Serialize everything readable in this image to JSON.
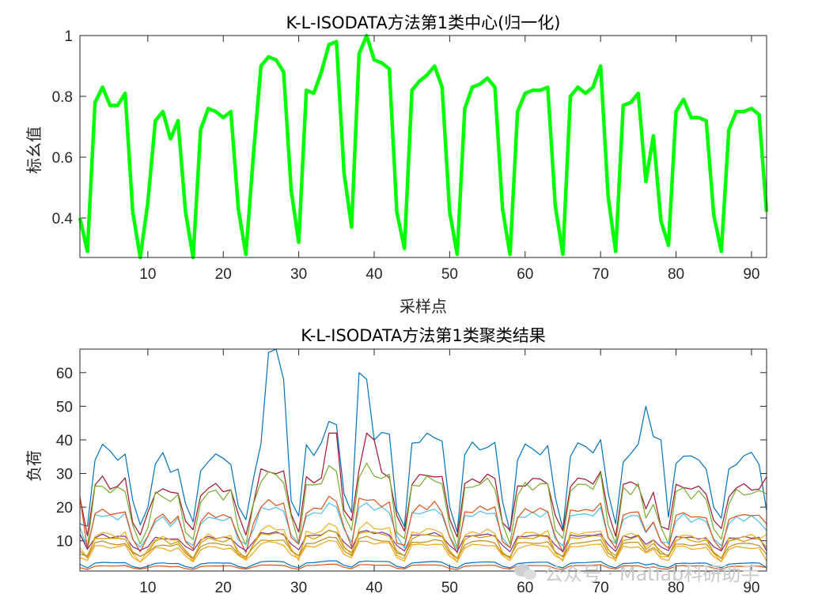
{
  "chart_data": [
    {
      "type": "line",
      "title": "K-L-ISODATA方法第1类中心(归一化)",
      "xlabel": "采样点",
      "ylabel": "标幺值",
      "xlim": [
        1,
        92
      ],
      "ylim": [
        0.27,
        1.0
      ],
      "xticks": [
        10,
        20,
        30,
        40,
        50,
        60,
        70,
        80,
        90
      ],
      "yticks": [
        0.4,
        0.6,
        0.8,
        1
      ],
      "ytick_labels": [
        "0.4",
        "0.6",
        "0.8",
        "1"
      ],
      "grid": false,
      "legend": "none",
      "series": [
        {
          "color": "#00ff00",
          "x": [
            1,
            2,
            3,
            4,
            5,
            6,
            7,
            8,
            9,
            10,
            11,
            12,
            13,
            14,
            15,
            16,
            17,
            18,
            19,
            20,
            21,
            22,
            23,
            24,
            25,
            26,
            27,
            28,
            29,
            30,
            31,
            32,
            33,
            34,
            35,
            36,
            37,
            38,
            39,
            40,
            41,
            42,
            43,
            44,
            45,
            46,
            47,
            48,
            49,
            50,
            51,
            52,
            53,
            54,
            55,
            56,
            57,
            58,
            59,
            60,
            61,
            62,
            63,
            64,
            65,
            66,
            67,
            68,
            69,
            70,
            71,
            72,
            73,
            74,
            75,
            76,
            77,
            78,
            79,
            80,
            81,
            82,
            83,
            84,
            85,
            86,
            87,
            88,
            89,
            90,
            91,
            92
          ],
          "values": [
            0.4,
            0.29,
            0.78,
            0.83,
            0.77,
            0.77,
            0.81,
            0.42,
            0.27,
            0.45,
            0.72,
            0.75,
            0.66,
            0.72,
            0.42,
            0.27,
            0.69,
            0.76,
            0.75,
            0.73,
            0.75,
            0.43,
            0.28,
            0.61,
            0.9,
            0.93,
            0.92,
            0.88,
            0.49,
            0.32,
            0.82,
            0.81,
            0.88,
            0.97,
            0.98,
            0.55,
            0.37,
            0.94,
            1.0,
            0.92,
            0.91,
            0.89,
            0.42,
            0.3,
            0.82,
            0.85,
            0.87,
            0.9,
            0.83,
            0.42,
            0.28,
            0.76,
            0.83,
            0.84,
            0.86,
            0.83,
            0.43,
            0.28,
            0.75,
            0.81,
            0.82,
            0.82,
            0.83,
            0.44,
            0.28,
            0.8,
            0.83,
            0.81,
            0.83,
            0.9,
            0.47,
            0.29,
            0.77,
            0.78,
            0.81,
            0.52,
            0.67,
            0.39,
            0.31,
            0.75,
            0.79,
            0.73,
            0.73,
            0.72,
            0.41,
            0.29,
            0.69,
            0.75,
            0.75,
            0.76,
            0.74,
            0.42
          ]
        }
      ]
    },
    {
      "type": "line",
      "title": "K-L-ISODATA方法第1类聚类结果",
      "xlabel": "",
      "ylabel": "负荷",
      "xlim": [
        1,
        92
      ],
      "ylim": [
        1,
        67
      ],
      "xticks": [
        10,
        20,
        30,
        40,
        50,
        60,
        70,
        80,
        90
      ],
      "yticks": [
        10,
        20,
        30,
        40,
        50,
        60
      ],
      "grid": false,
      "legend": "none",
      "series": [
        {
          "color": "#0072bd",
          "shape": "a",
          "day_peak": 45,
          "night": 14,
          "rise": 3,
          "start": 15,
          "end": 19,
          "spikes": [
            [
              26,
              66
            ],
            [
              27,
              67
            ],
            [
              28,
              58
            ],
            [
              38,
              60
            ],
            [
              39,
              58
            ],
            [
              47,
              42
            ],
            [
              76,
              50
            ],
            [
              77,
              41
            ],
            [
              78,
              40
            ]
          ]
        },
        {
          "color": "#a2142f",
          "shape": "a",
          "day_peak": 33,
          "night": 12,
          "rise": 3,
          "start": 23,
          "end": 29,
          "spikes": [
            [
              34,
              42
            ],
            [
              35,
              42
            ],
            [
              39,
              42
            ],
            [
              40,
              40
            ]
          ]
        },
        {
          "color": "#77ac30",
          "shape": "a",
          "day_peak": 32,
          "night": 9,
          "rise": 3,
          "start": 12,
          "end": 24
        },
        {
          "color": "#4dbeee",
          "shape": "a",
          "day_peak": 21,
          "night": 8,
          "rise": 3,
          "start": 14,
          "end": 13
        },
        {
          "color": "#d95319",
          "shape": "b",
          "day_peak": 23,
          "night": 7,
          "rise": 3,
          "start": 23,
          "end": 15
        },
        {
          "color": "#7e2f8e",
          "shape": "a",
          "day_peak": 13,
          "night": 7,
          "rise": 3,
          "start": 12,
          "end": 7
        },
        {
          "color": "#edb120",
          "shape": "b",
          "day_peak": 15,
          "night": 4,
          "rise": 3,
          "start": 8,
          "end": 12
        },
        {
          "color": "#cc9900",
          "shape": "c",
          "day_peak": 13,
          "night": 5,
          "rise": 3,
          "start": 6,
          "end": 8
        },
        {
          "color": "#f2a516",
          "shape": "c",
          "day_peak": 10,
          "night": 4,
          "rise": 3,
          "start": 5,
          "end": 4
        },
        {
          "color": "#c38b1f",
          "shape": "c",
          "day_peak": 11,
          "night": 5,
          "rise": 3,
          "start": 7,
          "end": 6
        },
        {
          "color": "#0072bd",
          "shape": "flat",
          "day_peak": 4,
          "night": 2,
          "rise": 3,
          "start": 3,
          "end": 2
        },
        {
          "color": "#d95319",
          "shape": "flat",
          "day_peak": 3,
          "night": 1.5,
          "rise": 3,
          "start": 2,
          "end": 2
        }
      ]
    }
  ],
  "watermark": "公众号 · Matlab科研助手"
}
